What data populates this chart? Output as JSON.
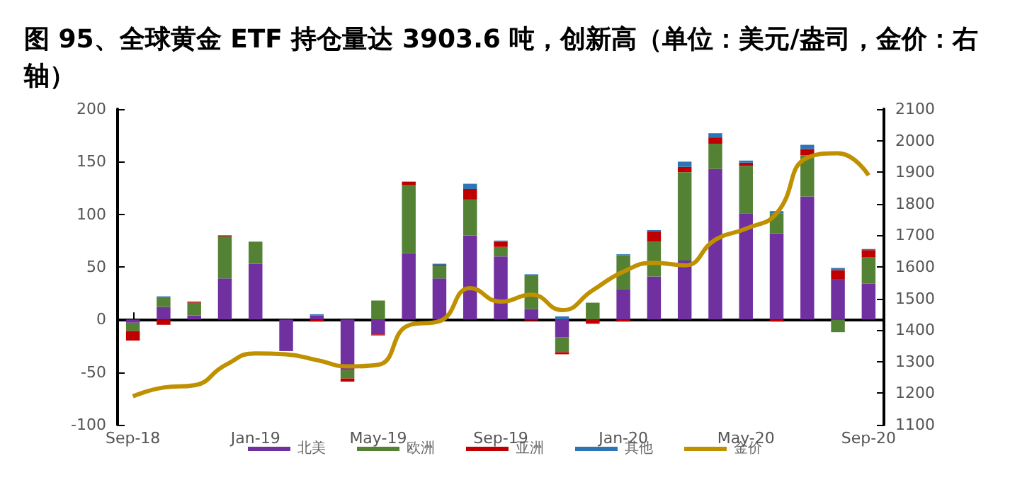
{
  "chart_data": {
    "type": "bar",
    "title": "图 95、全球黄金 ETF 持仓量达 3903.6 吨，创新高（单位：美元/盎司，金价：右轴）",
    "categories": [
      "Sep-18",
      null,
      null,
      null,
      "Jan-19",
      null,
      null,
      null,
      "May-19",
      null,
      null,
      null,
      "Sep-19",
      null,
      null,
      null,
      "Jan-20",
      null,
      null,
      null,
      "May-20",
      null,
      null,
      null,
      "Sep-20"
    ],
    "stacked": true,
    "legend": "bottom",
    "marker": "none",
    "series": [
      {
        "name": "北美",
        "color": "#7030a0",
        "values": [
          -3,
          12,
          4,
          39,
          53,
          -30,
          4,
          -48,
          -14,
          63,
          39,
          80,
          60,
          10,
          -17,
          0,
          29,
          41,
          56,
          143,
          101,
          82,
          117,
          38,
          34
        ]
      },
      {
        "name": "欧洲",
        "color": "#548235",
        "values": [
          -8,
          9,
          12,
          40,
          21,
          0,
          0,
          -8,
          18,
          65,
          12,
          34,
          9,
          32,
          -14,
          16,
          32,
          33,
          84,
          24,
          45,
          19,
          39,
          -12,
          25
        ]
      },
      {
        "name": "亚洲",
        "color": "#c00000",
        "values": [
          -9,
          -5,
          1,
          1,
          0,
          null,
          -2,
          -3,
          -1,
          3,
          1,
          10,
          5,
          -1,
          -2,
          -4,
          -2,
          10,
          5,
          6,
          3,
          -2,
          6,
          9,
          7
        ]
      },
      {
        "name": "其他",
        "color": "#2e75b6",
        "values": [
          0,
          1,
          0,
          0,
          0,
          0,
          1,
          0,
          0,
          0,
          1,
          5,
          1,
          1,
          3,
          0,
          1,
          1,
          5,
          4,
          2,
          2,
          4,
          2,
          1
        ]
      },
      {
        "name": "金价",
        "type": "line",
        "axis": "y2",
        "color": "#bf9000",
        "values": [
          1190,
          1218,
          1225,
          1288,
          1326,
          1323,
          1305,
          1285,
          1290,
          1415,
          1428,
          1533,
          1490,
          1512,
          1463,
          1526,
          1585,
          1613,
          1605,
          1686,
          1721,
          1770,
          1946,
          1960,
          1890
        ]
      }
    ],
    "ylim": [
      -100,
      200
    ],
    "yticks": [
      -100,
      -50,
      0,
      50,
      100,
      150,
      200
    ],
    "y2lim": [
      1100,
      2100
    ],
    "y2ticks": [
      1100,
      1200,
      1300,
      1400,
      1500,
      1600,
      1700,
      1800,
      1900,
      2000,
      2100
    ]
  }
}
